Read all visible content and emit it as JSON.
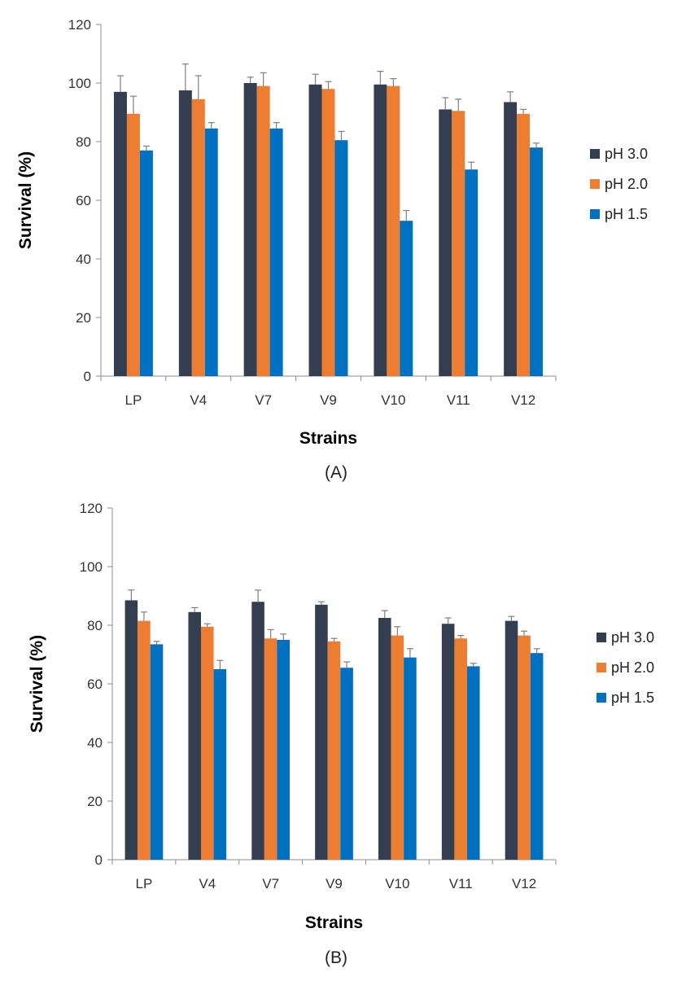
{
  "chart_data": [
    {
      "type": "bar",
      "panel_label": "(A)",
      "xlabel": "Strains",
      "ylabel": "Survival (%)",
      "ylim": [
        0,
        120
      ],
      "yticks": [
        0,
        20,
        40,
        60,
        80,
        100,
        120
      ],
      "categories": [
        "LP",
        "V4",
        "V7",
        "V9",
        "V10",
        "V11",
        "V12"
      ],
      "legend_position": "right",
      "grid": false,
      "series": [
        {
          "name": "pH 3.0",
          "color": "#333f50",
          "values": [
            97,
            97.5,
            100,
            99.5,
            99.5,
            91,
            93.5
          ],
          "errors": [
            5.5,
            9,
            2,
            3.5,
            4.5,
            4,
            3.5
          ]
        },
        {
          "name": "pH 2.0",
          "color": "#ed7d31",
          "values": [
            89.5,
            94.5,
            99,
            98,
            99,
            90.5,
            89.5
          ],
          "errors": [
            6,
            8,
            4.5,
            2.5,
            2.5,
            4,
            1.5
          ]
        },
        {
          "name": "pH 1.5",
          "color": "#0070c0",
          "values": [
            77,
            84.5,
            84.5,
            80.5,
            53,
            70.5,
            78
          ],
          "errors": [
            1.5,
            2,
            2,
            3,
            3.5,
            2.5,
            1.5
          ]
        }
      ]
    },
    {
      "type": "bar",
      "panel_label": "(B)",
      "xlabel": "Strains",
      "ylabel": "Survival (%)",
      "ylim": [
        0,
        120
      ],
      "yticks": [
        0,
        20,
        40,
        60,
        80,
        100,
        120
      ],
      "categories": [
        "LP",
        "V4",
        "V7",
        "V9",
        "V10",
        "V11",
        "V12"
      ],
      "legend_position": "right",
      "grid": false,
      "series": [
        {
          "name": "pH 3.0",
          "color": "#333f50",
          "values": [
            88.5,
            84.5,
            88,
            87,
            82.5,
            80.5,
            81.5
          ],
          "errors": [
            3.5,
            1.5,
            4,
            1,
            2.5,
            2,
            1.5
          ]
        },
        {
          "name": "pH 2.0",
          "color": "#ed7d31",
          "values": [
            81.5,
            79.5,
            75.5,
            74.5,
            76.5,
            75.5,
            76.5
          ],
          "errors": [
            3,
            1,
            3,
            1,
            3,
            1,
            1.5
          ]
        },
        {
          "name": "pH 1.5",
          "color": "#0070c0",
          "values": [
            73.5,
            65,
            75,
            65.5,
            69,
            66,
            70.5
          ],
          "errors": [
            1,
            3,
            2,
            2,
            3,
            1,
            1.5
          ]
        }
      ]
    }
  ]
}
